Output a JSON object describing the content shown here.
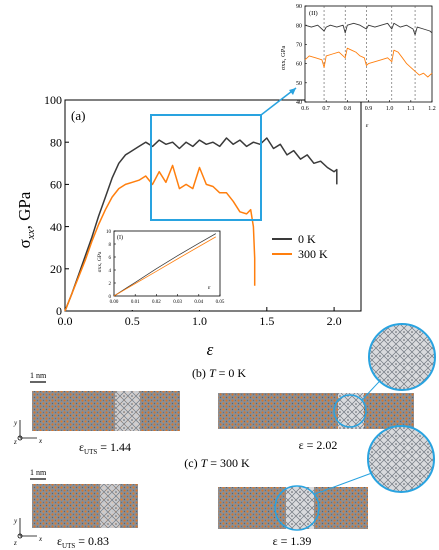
{
  "main_panel": {
    "label": "(a)",
    "ylabel_sym": "σ",
    "ylabel_sub": "xx",
    "ylabel_unit": ", GPa",
    "xlabel": "ε",
    "legend": [
      {
        "name": "0 K",
        "color": "#3a3a3a"
      },
      {
        "name": "300 K",
        "color": "#ff7f0e"
      }
    ],
    "highlight_color": "#29a3e0"
  },
  "inset_I": {
    "label": "(I)",
    "ylabel": "σxx, GPa",
    "xlabel": "ε"
  },
  "inset_II": {
    "label": "(II)",
    "ylabel": "σxx, GPa",
    "xlabel": "ε"
  },
  "panel_b": {
    "title_pre": "(b) ",
    "title_T": "T",
    "title_post": " = 0 K",
    "scale": "1 nm",
    "left_eps": "ε",
    "left_sub": "UTS",
    "left_val": " = 1.44",
    "right_label": "ε = 2.02"
  },
  "panel_c": {
    "title_pre": "(c) ",
    "title_T": "T",
    "title_post": " = 300 K",
    "scale": "1 nm",
    "left_eps": "ε",
    "left_sub": "UTS",
    "left_val": " = 0.83",
    "right_label": "ε = 1.39"
  },
  "axes_triad": {
    "y": "y",
    "z": "z",
    "x": "x"
  },
  "chart_data": [
    {
      "type": "line",
      "title": "(a)",
      "xlabel": "ε",
      "ylabel": "σxx, GPa",
      "xlim": [
        0.0,
        2.2
      ],
      "ylim": [
        0,
        100
      ],
      "xticks": [
        0.0,
        0.5,
        1.0,
        1.5,
        2.0
      ],
      "yticks": [
        0,
        20,
        40,
        60,
        80,
        100
      ],
      "legend_position": "center-right",
      "series": [
        {
          "name": "0 K",
          "color": "#3a3a3a",
          "x": [
            0.0,
            0.05,
            0.1,
            0.15,
            0.2,
            0.25,
            0.3,
            0.35,
            0.4,
            0.45,
            0.5,
            0.55,
            0.6,
            0.65,
            0.7,
            0.75,
            0.8,
            0.85,
            0.9,
            0.95,
            1.0,
            1.05,
            1.1,
            1.15,
            1.2,
            1.25,
            1.3,
            1.35,
            1.4,
            1.45,
            1.5,
            1.55,
            1.6,
            1.65,
            1.7,
            1.75,
            1.8,
            1.85,
            1.9,
            1.95,
            2.0,
            2.02,
            2.02
          ],
          "y": [
            0,
            8,
            17,
            26,
            35,
            45,
            54,
            63,
            70,
            74,
            76,
            78,
            80,
            78,
            81,
            79,
            80,
            77,
            80,
            78,
            81,
            79,
            80,
            78,
            82,
            79,
            81,
            78,
            80,
            79,
            82,
            77,
            79,
            74,
            76,
            72,
            74,
            70,
            71,
            68,
            66,
            67,
            60
          ]
        },
        {
          "name": "300 K",
          "color": "#ff7f0e",
          "x": [
            0.0,
            0.05,
            0.1,
            0.15,
            0.2,
            0.25,
            0.3,
            0.35,
            0.4,
            0.45,
            0.5,
            0.55,
            0.6,
            0.65,
            0.7,
            0.75,
            0.8,
            0.85,
            0.9,
            0.95,
            1.0,
            1.05,
            1.1,
            1.15,
            1.2,
            1.25,
            1.3,
            1.35,
            1.38,
            1.4,
            1.41,
            1.41
          ],
          "y": [
            0,
            8,
            16,
            24,
            33,
            41,
            48,
            54,
            58,
            60,
            61,
            62,
            64,
            60,
            66,
            61,
            69,
            58,
            60,
            58,
            68,
            60,
            59,
            56,
            56,
            52,
            47,
            46,
            48,
            40,
            25,
            12
          ]
        }
      ]
    },
    {
      "type": "line",
      "title": "(I)",
      "xlabel": "ε",
      "ylabel": "σxx, GPa",
      "xlim": [
        0.0,
        0.05
      ],
      "ylim": [
        0,
        10
      ],
      "xticks": [
        0.0,
        0.01,
        0.02,
        0.03,
        0.04,
        0.05
      ],
      "yticks": [
        0,
        2,
        4,
        6,
        8,
        10
      ],
      "series": [
        {
          "name": "0 K",
          "color": "#3a3a3a",
          "x": [
            0.0,
            0.01,
            0.02,
            0.03,
            0.04,
            0.048
          ],
          "y": [
            0,
            2.1,
            4.2,
            6.2,
            8.1,
            9.6
          ]
        },
        {
          "name": "300 K",
          "color": "#ff7f0e",
          "x": [
            0.0,
            0.01,
            0.02,
            0.03,
            0.04,
            0.048
          ],
          "y": [
            0,
            1.9,
            3.8,
            5.7,
            7.6,
            9.1
          ]
        }
      ]
    },
    {
      "type": "line",
      "title": "(II)",
      "xlabel": "ε",
      "ylabel": "σxx, GPa",
      "xlim": [
        0.6,
        1.2
      ],
      "ylim": [
        40,
        90
      ],
      "xticks": [
        0.6,
        0.7,
        0.8,
        0.9,
        1.0,
        1.1,
        1.2
      ],
      "yticks": [
        40,
        50,
        60,
        70,
        80,
        90
      ],
      "vlines": [
        0.69,
        0.79,
        0.89,
        1.01,
        1.12
      ],
      "series": [
        {
          "name": "0 K",
          "color": "#3a3a3a",
          "x": [
            0.6,
            0.63,
            0.66,
            0.69,
            0.7,
            0.72,
            0.75,
            0.78,
            0.79,
            0.8,
            0.83,
            0.86,
            0.89,
            0.9,
            0.93,
            0.96,
            0.99,
            1.01,
            1.02,
            1.05,
            1.08,
            1.11,
            1.12,
            1.13,
            1.16,
            1.19,
            1.2
          ],
          "y": [
            80,
            79,
            80,
            77,
            79,
            80,
            79,
            80,
            76,
            80,
            81,
            80,
            78,
            80,
            79,
            80,
            81,
            78,
            81,
            79,
            80,
            78,
            75,
            79,
            78,
            77,
            76
          ]
        },
        {
          "name": "300 K",
          "color": "#ff7f0e",
          "x": [
            0.6,
            0.62,
            0.65,
            0.68,
            0.69,
            0.7,
            0.73,
            0.76,
            0.79,
            0.8,
            0.82,
            0.84,
            0.86,
            0.88,
            0.89,
            0.9,
            0.93,
            0.96,
            0.99,
            1.01,
            1.02,
            1.04,
            1.06,
            1.08,
            1.1,
            1.12,
            1.14,
            1.16,
            1.18,
            1.2
          ],
          "y": [
            62,
            64,
            63,
            62,
            58,
            64,
            65,
            66,
            63,
            68,
            67,
            66,
            64,
            63,
            59,
            60,
            61,
            62,
            63,
            61,
            67,
            66,
            63,
            60,
            58,
            56,
            54,
            55,
            53,
            55
          ]
        }
      ]
    }
  ]
}
